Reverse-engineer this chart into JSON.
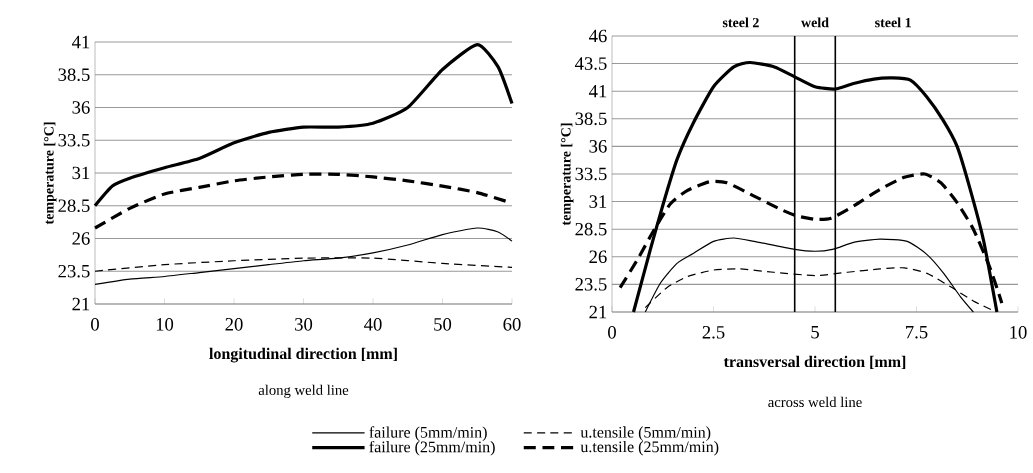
{
  "chart_data": [
    {
      "type": "line",
      "xlabel": "longitudinal direction [mm]",
      "ylabel": "temperature [°C]",
      "annotations": [
        "along weld line"
      ],
      "xlim": [
        0,
        60
      ],
      "xticks": [
        0,
        10,
        20,
        30,
        40,
        50,
        60
      ],
      "ylim": [
        21,
        41
      ],
      "yticks": [
        21,
        23.5,
        26,
        28.5,
        31,
        33.5,
        36,
        38.5,
        41
      ],
      "grid": "y",
      "legend": "bottom",
      "marker": "none",
      "series": [
        {
          "name": "failure  (5mm/min)",
          "color": "#000000",
          "line_style": "solid",
          "x": [
            0,
            5,
            10,
            15,
            20,
            25,
            30,
            35,
            40,
            45,
            50,
            55,
            58,
            60
          ],
          "values": [
            22.5,
            22.9,
            23.1,
            23.4,
            23.7,
            24.0,
            24.3,
            24.5,
            24.9,
            25.5,
            26.3,
            26.8,
            26.5,
            25.8
          ]
        },
        {
          "name": "u.tensile  (5mm/min)",
          "color": "#000000",
          "line_style": "dashed",
          "x": [
            0,
            10,
            20,
            30,
            40,
            50,
            60
          ],
          "values": [
            23.5,
            24.0,
            24.3,
            24.5,
            24.5,
            24.1,
            23.8
          ]
        },
        {
          "name": "failure (25mm/min)",
          "color": "#000000",
          "line_style": "solid",
          "x": [
            0,
            2.5,
            5,
            10,
            15,
            20,
            25,
            30,
            35,
            40,
            45,
            50,
            55,
            58,
            60
          ],
          "values": [
            28.5,
            30.0,
            30.6,
            31.4,
            32.1,
            33.3,
            34.1,
            34.5,
            34.5,
            34.8,
            36.0,
            38.9,
            40.8,
            39.1,
            36.3
          ]
        },
        {
          "name": "u.tensile (25mm/min)",
          "color": "#000000",
          "line_style": "dashed",
          "x": [
            0,
            5,
            10,
            15,
            20,
            25,
            30,
            35,
            40,
            45,
            50,
            55,
            60
          ],
          "values": [
            26.8,
            28.3,
            29.4,
            29.9,
            30.4,
            30.7,
            30.9,
            30.9,
            30.7,
            30.4,
            30.0,
            29.5,
            28.7
          ]
        }
      ]
    },
    {
      "type": "line",
      "xlabel": "transversal direction [mm]",
      "ylabel": "temperature [°C]",
      "annotations": [
        "across weld line",
        "steel 2",
        "weld",
        "steel 1"
      ],
      "ref_lines": [
        {
          "axis": "x",
          "value": 4.5
        },
        {
          "axis": "x",
          "value": 5.5
        }
      ],
      "xlim": [
        0,
        10
      ],
      "xticks": [
        0,
        2.5,
        5,
        7.5,
        10
      ],
      "ylim": [
        21,
        46
      ],
      "yticks": [
        21,
        23.5,
        26,
        28.5,
        31,
        33.5,
        36,
        38.5,
        41,
        43.5,
        46
      ],
      "grid": "y",
      "marker": "none",
      "series": [
        {
          "color": "#000000",
          "line_style": "solid",
          "x": [
            0.82,
            1.19,
            1.6,
            2.0,
            2.5,
            3.0,
            3.5,
            4.47,
            5.0,
            5.46,
            5.95,
            6.6,
            7.27,
            7.76,
            8.17,
            8.58,
            8.9
          ],
          "values": [
            21,
            23.6,
            25.4,
            26.3,
            27.4,
            27.7,
            27.4,
            26.7,
            26.5,
            26.7,
            27.3,
            27.6,
            27.4,
            26.2,
            24.5,
            22.4,
            21
          ]
        },
        {
          "color": "#000000",
          "line_style": "dashed",
          "x": [
            0.82,
            1.35,
            1.85,
            2.5,
            3.15,
            3.98,
            5.0,
            5.8,
            6.6,
            7.2,
            7.76,
            8.33,
            8.9,
            9.4
          ],
          "values": [
            21.4,
            23.2,
            24.2,
            24.8,
            24.9,
            24.6,
            24.3,
            24.6,
            24.9,
            25.0,
            24.5,
            23.3,
            22.0,
            21.1
          ]
        },
        {
          "color": "#000000",
          "line_style": "solid",
          "x": [
            0.53,
            0.94,
            1.27,
            1.6,
            2.0,
            2.5,
            3.0,
            3.4,
            4.0,
            4.5,
            5.0,
            5.5,
            5.95,
            6.45,
            6.9,
            7.35,
            7.75,
            8.15,
            8.5,
            8.8,
            9.15,
            9.48
          ],
          "values": [
            21,
            26.6,
            30.9,
            34.8,
            38.1,
            41.4,
            43.2,
            43.6,
            43.2,
            42.3,
            41.4,
            41.2,
            41.7,
            42.1,
            42.2,
            42.0,
            40.5,
            38.4,
            36.0,
            32.4,
            27.5,
            21
          ]
        },
        {
          "color": "#000000",
          "line_style": "dashed",
          "x": [
            0.2,
            0.62,
            1.03,
            1.44,
            1.85,
            2.4,
            2.83,
            3.5,
            4.15,
            4.55,
            5.0,
            5.4,
            5.95,
            6.6,
            7.2,
            7.7,
            8.1,
            8.5,
            8.9,
            9.3,
            9.55,
            9.6
          ],
          "values": [
            23.2,
            25.7,
            28.4,
            30.8,
            32.0,
            32.8,
            32.7,
            31.5,
            30.3,
            29.7,
            29.4,
            29.5,
            30.6,
            32.1,
            33.2,
            33.5,
            32.7,
            30.9,
            28.5,
            25.1,
            22.4,
            21.8
          ]
        }
      ]
    }
  ]
}
